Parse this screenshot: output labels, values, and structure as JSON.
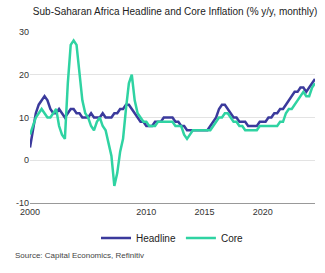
{
  "chart_data": {
    "type": "line",
    "title": "Sub-Saharan Africa Headline and Core Inflation (% y/y, monthly)",
    "source": "Source: Capital Economics, Refinitiv",
    "x": [
      2000,
      2000.25,
      2000.5,
      2000.75,
      2001,
      2001.25,
      2001.5,
      2001.75,
      2002,
      2002.25,
      2002.5,
      2002.75,
      2003,
      2003.25,
      2003.5,
      2003.75,
      2004,
      2004.25,
      2004.5,
      2004.75,
      2005,
      2005.25,
      2005.5,
      2005.75,
      2006,
      2006.25,
      2006.5,
      2006.75,
      2007,
      2007.25,
      2007.5,
      2007.75,
      2008,
      2008.25,
      2008.5,
      2008.75,
      2009,
      2009.25,
      2009.5,
      2009.75,
      2010,
      2010.25,
      2010.5,
      2010.75,
      2011,
      2011.25,
      2011.5,
      2011.75,
      2012,
      2012.25,
      2012.5,
      2012.75,
      2013,
      2013.25,
      2013.5,
      2013.75,
      2014,
      2014.25,
      2014.5,
      2014.75,
      2015,
      2015.25,
      2015.5,
      2015.75,
      2016,
      2016.25,
      2016.5,
      2016.75,
      2017,
      2017.25,
      2017.5,
      2017.75,
      2018,
      2018.25,
      2018.5,
      2018.75,
      2019,
      2019.25,
      2019.5,
      2019.75,
      2020,
      2020.25,
      2020.5,
      2020.75,
      2021,
      2021.25,
      2021.5,
      2021.75,
      2022,
      2022.25,
      2022.5,
      2022.75,
      2023,
      2023.25,
      2023.5,
      2023.75,
      2024,
      2024.25,
      2024.5
    ],
    "series": [
      {
        "name": "Headline",
        "color": "#3b3a9c",
        "values": [
          3,
          7,
          11,
          13,
          14,
          15,
          14,
          12,
          11,
          11,
          12,
          11,
          10,
          11,
          12,
          12,
          11,
          11,
          10,
          10,
          10,
          11,
          10,
          10,
          10,
          11,
          10,
          10,
          10,
          11,
          11,
          12,
          12,
          13,
          13,
          12,
          11,
          10,
          9,
          9,
          8,
          8,
          8,
          9,
          9,
          9,
          10,
          10,
          10,
          10,
          9,
          9,
          8,
          8,
          7,
          7,
          7,
          7,
          7,
          7,
          7,
          7,
          8,
          9,
          10,
          12,
          13,
          13,
          12,
          11,
          10,
          10,
          9,
          9,
          9,
          8,
          8,
          8,
          8,
          9,
          9,
          9,
          10,
          10,
          11,
          11,
          12,
          12,
          13,
          14,
          15,
          16,
          16,
          17,
          17,
          16,
          17,
          18,
          19
        ]
      },
      {
        "name": "Core",
        "color": "#2fd3a2",
        "values": [
          6,
          8,
          10,
          11,
          12,
          11,
          10,
          10,
          11,
          12,
          8,
          6,
          5,
          18,
          27,
          28,
          27,
          20,
          14,
          11,
          10,
          8,
          7,
          9,
          10,
          8,
          7,
          4,
          1,
          -6,
          -3,
          2,
          5,
          12,
          18,
          20,
          14,
          11,
          10,
          9,
          9,
          8,
          8,
          8,
          9,
          9,
          9,
          9,
          9,
          9,
          8,
          8,
          8,
          6,
          5,
          6,
          7,
          7,
          7,
          7,
          7,
          7,
          7,
          8,
          9,
          10,
          10,
          11,
          11,
          10,
          9,
          9,
          8,
          8,
          7,
          7,
          7,
          7,
          7,
          8,
          8,
          8,
          8,
          8,
          8,
          8,
          9,
          9,
          11,
          12,
          12,
          13,
          14,
          15,
          16,
          15,
          15,
          17,
          18
        ]
      }
    ],
    "xlim": [
      2000,
      2024.5
    ],
    "xticks": [
      2000,
      2010,
      2015,
      2020
    ],
    "ylim": [
      -10,
      30
    ],
    "yticks": [
      -10,
      0,
      10,
      20,
      30
    ],
    "grid": true,
    "legend": "bottom"
  }
}
